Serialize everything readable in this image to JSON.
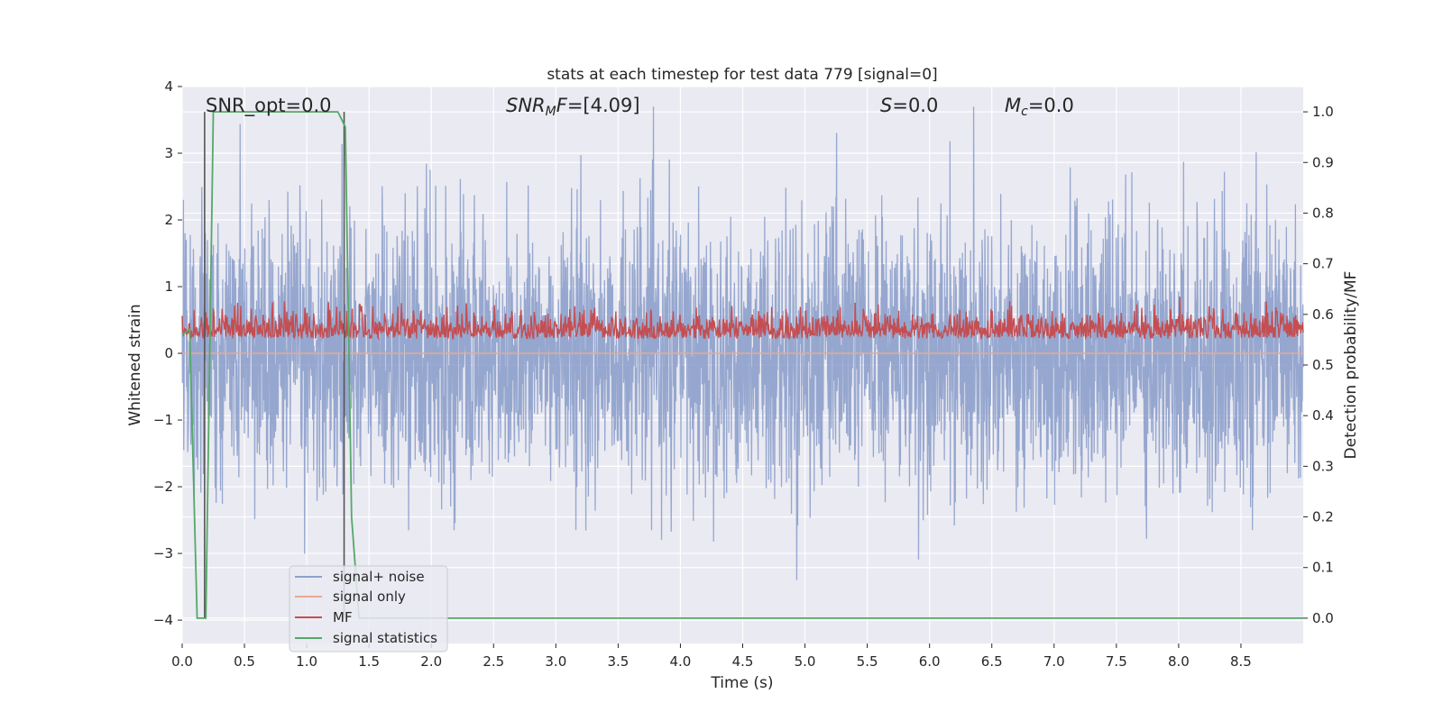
{
  "chart_data": {
    "type": "line",
    "title": "stats at each timestep for test data 779 [signal=0]",
    "xlabel": "Time (s)",
    "ylabel_left": "Whitened strain",
    "ylabel_right": "Detection probability/MF",
    "xlim": [
      0.0,
      9.0
    ],
    "ylim_left": [
      -4.35,
      4.0
    ],
    "ylim_right": [
      -0.05,
      1.05
    ],
    "xticks": [
      "0.0",
      "0.5",
      "1.0",
      "1.5",
      "2.0",
      "2.5",
      "3.0",
      "3.5",
      "4.0",
      "4.5",
      "5.0",
      "5.5",
      "6.0",
      "6.5",
      "7.0",
      "7.5",
      "8.0",
      "8.5"
    ],
    "yticks_left": [
      "4",
      "3",
      "2",
      "1",
      "0",
      "−1",
      "−2",
      "−3",
      "−4"
    ],
    "yticks_right": [
      "1.0",
      "0.9",
      "0.8",
      "0.7",
      "0.6",
      "0.5",
      "0.4",
      "0.3",
      "0.2",
      "0.1",
      "0.0"
    ],
    "grid": true,
    "legend_position": "lower-left",
    "annotations": {
      "snr_opt": "SNR_opt=0.0",
      "snr_mf": "=[4.09]",
      "snr_mf_symbol": "SNR",
      "snr_mf_sub": "M",
      "snr_mf_tail": "F",
      "s": "=0.0",
      "s_symbol": "S",
      "mc": "=0.0",
      "mc_symbol": "M",
      "mc_sub": "c"
    },
    "vertical_lines_x": [
      0.18,
      1.3
    ],
    "series": [
      {
        "name": "signal+ noise",
        "color": "#8da0cb",
        "axis": "left",
        "style": "noise",
        "amplitude_std": 1.0
      },
      {
        "name": "signal only",
        "color": "#e8a98f",
        "axis": "left",
        "style": "flat",
        "value": 0.0
      },
      {
        "name": "MF",
        "color": "#c44e52",
        "axis": "left",
        "style": "noise",
        "center": 0.3,
        "amplitude_std": 0.12
      },
      {
        "name": "signal statistics",
        "color": "#55a868",
        "axis": "right",
        "x": [
          0.0,
          0.06,
          0.12,
          0.19,
          0.25,
          0.3,
          1.25,
          1.31,
          1.36,
          1.42,
          2.1,
          2.15,
          9.0
        ],
        "values": [
          0.56,
          0.57,
          0.0,
          0.0,
          1.0,
          1.0,
          1.0,
          0.97,
          0.2,
          0.0,
          0.0,
          0.0,
          0.0
        ]
      }
    ]
  }
}
